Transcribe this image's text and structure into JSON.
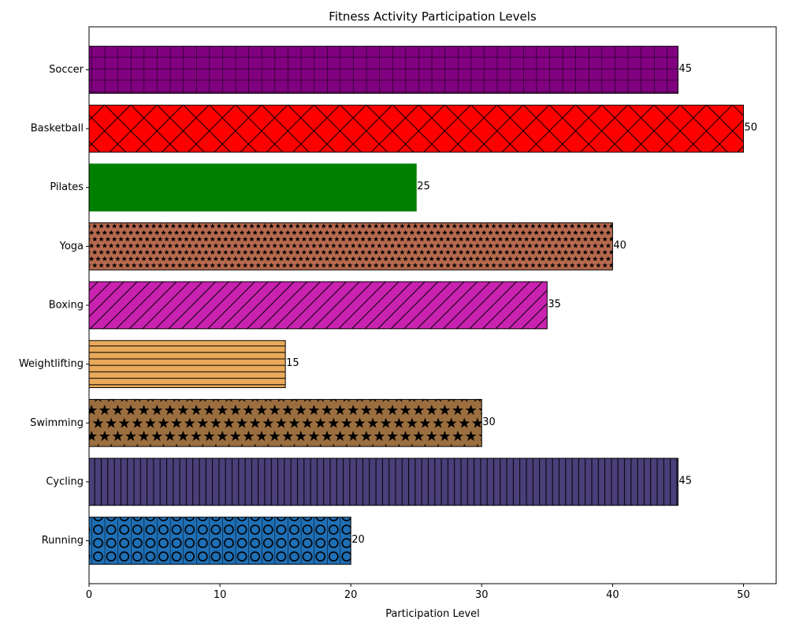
{
  "chart_data": {
    "type": "bar",
    "orientation": "horizontal",
    "title": "Fitness Activity Participation Levels",
    "xlabel": "Participation Level",
    "ylabel": "",
    "xlim": [
      0,
      52.5
    ],
    "xticks": [
      0,
      10,
      20,
      30,
      40,
      50
    ],
    "grid": false,
    "legend": "none",
    "categories": [
      "Running",
      "Cycling",
      "Swimming",
      "Weightlifting",
      "Boxing",
      "Yoga",
      "Pilates",
      "Basketball",
      "Soccer"
    ],
    "values": [
      20,
      45,
      30,
      15,
      35,
      40,
      25,
      50,
      45
    ],
    "colors": [
      "#1f6fb5",
      "#4a3f7a",
      "#9b6e3f",
      "#e8a95a",
      "#c922b0",
      "#b86a4f",
      "#008000",
      "#ff0000",
      "#800080"
    ],
    "hatches": [
      "circles",
      "vertical",
      "stars",
      "horizontal",
      "diagonal",
      "small-stars",
      "none",
      "crosshatch-diagonal",
      "grid"
    ]
  }
}
